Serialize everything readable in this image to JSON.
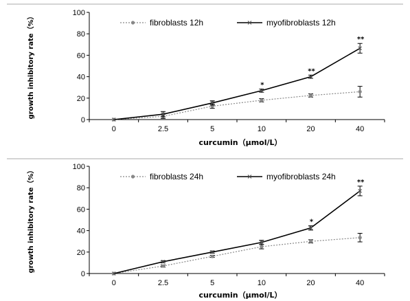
{
  "chart_data": [
    {
      "type": "line",
      "categories": [
        "0",
        "2.5",
        "5",
        "10",
        "20",
        "40"
      ],
      "ylim": [
        0,
        100
      ],
      "yticks": [
        0,
        20,
        40,
        60,
        80,
        100
      ],
      "xlabel": "curcumin（μmol/L）",
      "ylabel": "growth inhibitory rate（%）",
      "legend_position": "top",
      "series": [
        {
          "name": "fibroblasts 12h",
          "style": "dotted",
          "color": "#888888",
          "marker": "circle",
          "values": [
            0,
            3,
            12.5,
            18,
            22.5,
            26
          ],
          "errors": [
            0,
            2,
            2,
            1.5,
            1.5,
            5
          ]
        },
        {
          "name": "myofibroblasts 12h",
          "style": "solid",
          "color": "#000000",
          "marker": "x",
          "values": [
            0,
            5,
            15.5,
            27,
            40,
            66.5
          ],
          "errors": [
            0,
            2.5,
            2,
            1.5,
            1.5,
            4.5
          ]
        }
      ],
      "annotations": [
        {
          "category": "10",
          "text": "*"
        },
        {
          "category": "20",
          "text": "**"
        },
        {
          "category": "40",
          "text": "**"
        }
      ]
    },
    {
      "type": "line",
      "categories": [
        "0",
        "2.5",
        "5",
        "10",
        "20",
        "40"
      ],
      "ylim": [
        0,
        100
      ],
      "yticks": [
        0,
        20,
        40,
        60,
        80,
        100
      ],
      "xlabel": "curcumin（μmol/L）",
      "ylabel": "growth inhibitory rate（%）",
      "legend_position": "top",
      "series": [
        {
          "name": "fibroblasts 24h",
          "style": "dotted",
          "color": "#888888",
          "marker": "circle",
          "values": [
            0,
            7,
            16,
            25,
            30,
            33.5
          ],
          "errors": [
            0,
            1,
            1,
            2,
            1.5,
            4
          ]
        },
        {
          "name": "myofibroblasts 24h",
          "style": "solid",
          "color": "#000000",
          "marker": "x",
          "values": [
            0,
            11,
            20,
            29,
            42.5,
            77
          ],
          "errors": [
            0,
            1,
            1,
            2,
            2,
            4.5
          ]
        }
      ],
      "annotations": [
        {
          "category": "20",
          "text": "*"
        },
        {
          "category": "40",
          "text": "**"
        }
      ]
    }
  ]
}
